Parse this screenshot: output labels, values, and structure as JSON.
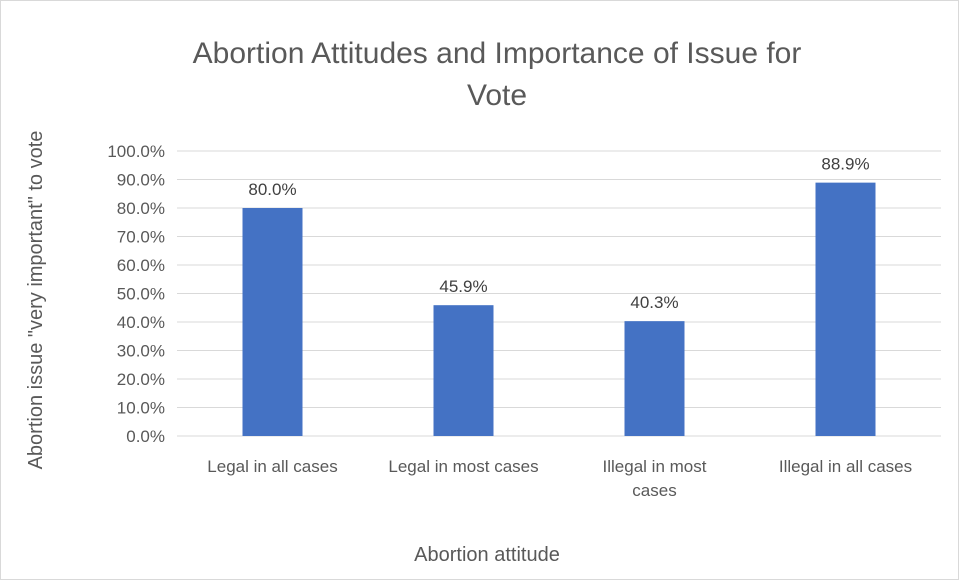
{
  "chart_data": {
    "type": "bar",
    "title_lines": [
      "Abortion Attitudes and Importance of Issue for",
      "Vote"
    ],
    "categories": [
      [
        "Legal in all cases"
      ],
      [
        "Legal in most cases"
      ],
      [
        "Illegal in most",
        "cases"
      ],
      [
        "Illegal in all cases"
      ]
    ],
    "values": [
      80.0,
      45.9,
      40.3,
      88.9
    ],
    "data_labels": [
      "80.0%",
      "45.9%",
      "40.3%",
      "88.9%"
    ],
    "xlabel": "Abortion attitude",
    "ylabel": "Abortion issue \"very important\" to vote",
    "ylim": [
      0,
      100
    ],
    "yticks": [
      0,
      10,
      20,
      30,
      40,
      50,
      60,
      70,
      80,
      90,
      100
    ],
    "ytick_labels": [
      "0.0%",
      "10.0%",
      "20.0%",
      "30.0%",
      "40.0%",
      "50.0%",
      "60.0%",
      "70.0%",
      "80.0%",
      "90.0%",
      "100.0%"
    ],
    "grid": true,
    "legend": "none",
    "bar_color": "#4472c4",
    "grid_color": "#d9d9d9",
    "text_color": "#595959"
  }
}
